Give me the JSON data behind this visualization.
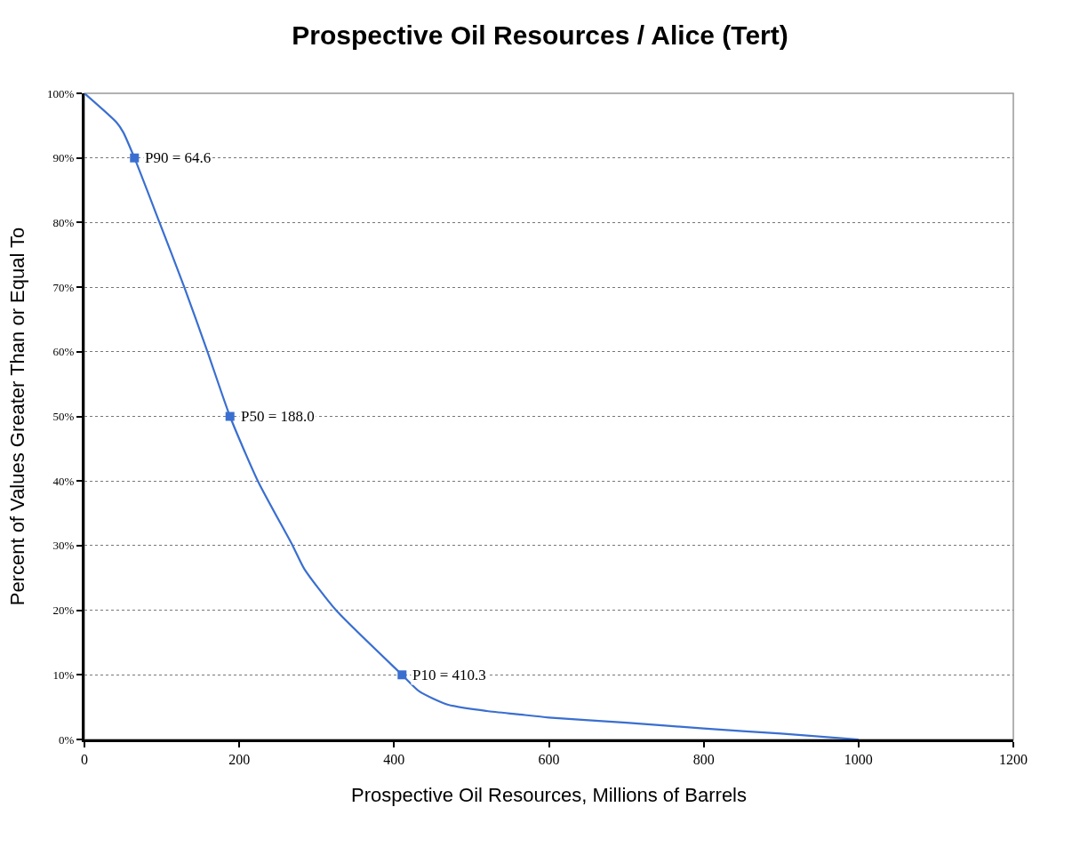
{
  "chart_data": {
    "type": "line",
    "title": "Prospective Oil Resources / Alice (Tert)",
    "xlabel": "Prospective Oil Resources, Millions of Barrels",
    "ylabel": "Percent of Values Greater Than or Equal To",
    "series": [
      {
        "color": "#3a6fd0",
        "marker": "none",
        "line_style": "solid",
        "x": [
          0,
          41.5,
          50,
          64.6,
          97,
          129,
          159,
          188,
          224,
          269,
          284,
          325,
          410.3,
          433,
          469,
          520,
          560,
          600,
          700,
          800,
          900,
          1000
        ],
        "values": [
          100,
          95.5,
          94,
          90,
          80,
          70,
          60,
          50,
          40,
          30,
          26.4,
          20,
          10,
          7.4,
          5.4,
          4.4,
          3.9,
          3.4,
          2.6,
          1.7,
          0.9,
          0
        ]
      },
      {
        "type": "scatter",
        "color": "#3a6fd0",
        "marker": "square",
        "x": [
          64.6,
          188.0,
          410.3
        ],
        "values": [
          90,
          50,
          10
        ]
      }
    ],
    "annotations": [
      {
        "text": "P90 = 64.6",
        "x": 64.6,
        "y": 90
      },
      {
        "text": "P50 = 188.0",
        "x": 188.0,
        "y": 50
      },
      {
        "text": "P10 = 410.3",
        "x": 410.3,
        "y": 10
      }
    ],
    "xlim": [
      0,
      1200
    ],
    "xticks": [
      0,
      200,
      400,
      600,
      800,
      1000,
      1200
    ],
    "ylim": [
      0,
      100
    ],
    "yticks": [
      {
        "value": 0,
        "label": "0%"
      },
      {
        "value": 10,
        "label": "10%"
      },
      {
        "value": 20,
        "label": "20%"
      },
      {
        "value": 30,
        "label": "30%"
      },
      {
        "value": 40,
        "label": "40%"
      },
      {
        "value": 50,
        "label": "50%"
      },
      {
        "value": 60,
        "label": "60%"
      },
      {
        "value": 70,
        "label": "70%"
      },
      {
        "value": 80,
        "label": "80%"
      },
      {
        "value": 90,
        "label": "90%"
      },
      {
        "value": 100,
        "label": "100%"
      }
    ],
    "grid": "y"
  }
}
